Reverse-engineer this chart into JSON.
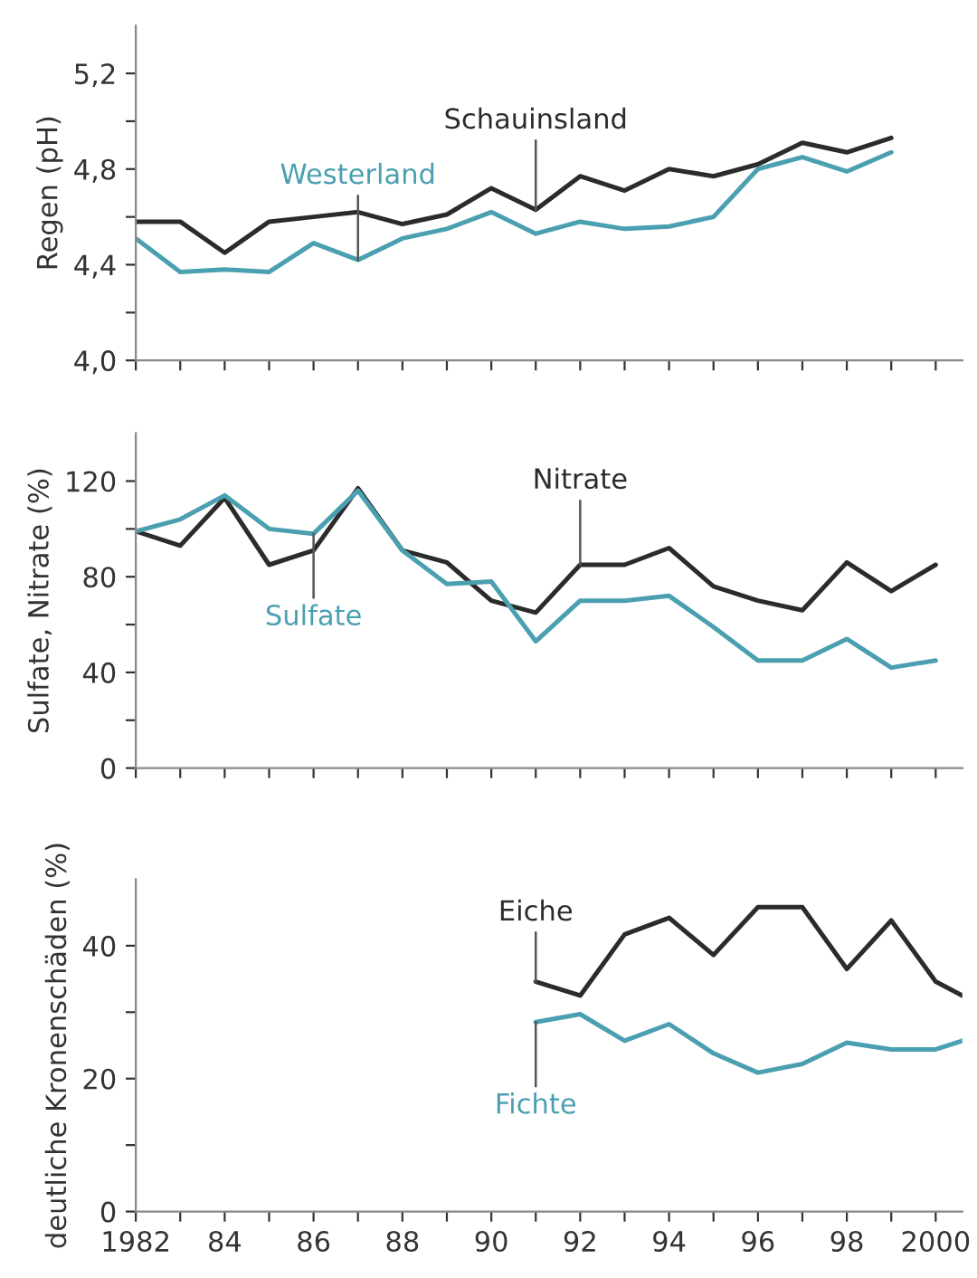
{
  "chart_data": [
    {
      "type": "line",
      "ylabel": "Regen (pH)",
      "x": [
        1982,
        1983,
        1984,
        1985,
        1986,
        1987,
        1988,
        1989,
        1990,
        1991,
        1992,
        1993,
        1994,
        1995,
        1996,
        1997,
        1998,
        1999
      ],
      "xlim": [
        1982,
        2000.6
      ],
      "xticks": [
        {
          "value": 1982,
          "label": null
        },
        {
          "value": 1983,
          "label": null
        },
        {
          "value": 1984,
          "label": null
        },
        {
          "value": 1985,
          "label": null
        },
        {
          "value": 1986,
          "label": null
        },
        {
          "value": 1987,
          "label": null
        },
        {
          "value": 1988,
          "label": null
        },
        {
          "value": 1989,
          "label": null
        },
        {
          "value": 1990,
          "label": null
        },
        {
          "value": 1991,
          "label": null
        },
        {
          "value": 1992,
          "label": null
        },
        {
          "value": 1993,
          "label": null
        },
        {
          "value": 1994,
          "label": null
        },
        {
          "value": 1995,
          "label": null
        },
        {
          "value": 1996,
          "label": null
        },
        {
          "value": 1997,
          "label": null
        },
        {
          "value": 1998,
          "label": null
        },
        {
          "value": 1999,
          "label": null
        },
        {
          "value": 2000,
          "label": null
        }
      ],
      "ylim": [
        4.0,
        5.4
      ],
      "yticks": [
        {
          "value": 4.0,
          "label": "4,0"
        },
        {
          "value": 4.2,
          "label": null
        },
        {
          "value": 4.4,
          "label": "4,4"
        },
        {
          "value": 4.6,
          "label": null
        },
        {
          "value": 4.8,
          "label": "4,8"
        },
        {
          "value": 5.0,
          "label": null
        },
        {
          "value": 5.2,
          "label": "5,2"
        }
      ],
      "tick_labels": "y",
      "grid": false,
      "legend": false,
      "series": [
        {
          "name": "Schauinsland",
          "color": "#2b2b2b",
          "values": [
            4.58,
            4.58,
            4.45,
            4.58,
            4.6,
            4.62,
            4.57,
            4.61,
            4.72,
            4.63,
            4.77,
            4.71,
            4.8,
            4.77,
            4.82,
            4.91,
            4.87,
            4.93
          ]
        },
        {
          "name": "Westerland",
          "color": "#4a9fb0",
          "values": [
            4.51,
            4.37,
            4.38,
            4.37,
            4.49,
            4.42,
            4.51,
            4.55,
            4.62,
            4.53,
            4.58,
            4.55,
            4.56,
            4.6,
            4.8,
            4.85,
            4.79,
            4.87
          ]
        }
      ]
    },
    {
      "type": "line",
      "ylabel": "Sulfate, Nitrate (%)",
      "x": [
        1982,
        1983,
        1984,
        1985,
        1986,
        1987,
        1988,
        1989,
        1990,
        1991,
        1992,
        1993,
        1994,
        1995,
        1996,
        1997,
        1998,
        1999,
        2000
      ],
      "xlim": [
        1982,
        2000.6
      ],
      "xticks": [
        {
          "value": 1982,
          "label": null
        },
        {
          "value": 1983,
          "label": null
        },
        {
          "value": 1984,
          "label": null
        },
        {
          "value": 1985,
          "label": null
        },
        {
          "value": 1986,
          "label": null
        },
        {
          "value": 1987,
          "label": null
        },
        {
          "value": 1988,
          "label": null
        },
        {
          "value": 1989,
          "label": null
        },
        {
          "value": 1990,
          "label": null
        },
        {
          "value": 1991,
          "label": null
        },
        {
          "value": 1992,
          "label": null
        },
        {
          "value": 1993,
          "label": null
        },
        {
          "value": 1994,
          "label": null
        },
        {
          "value": 1995,
          "label": null
        },
        {
          "value": 1996,
          "label": null
        },
        {
          "value": 1997,
          "label": null
        },
        {
          "value": 1998,
          "label": null
        },
        {
          "value": 1999,
          "label": null
        },
        {
          "value": 2000,
          "label": null
        }
      ],
      "ylim": [
        0,
        140
      ],
      "yticks": [
        0,
        {
          "value": 20,
          "label": null
        },
        40,
        {
          "value": 60,
          "label": null
        },
        80,
        {
          "value": 100,
          "label": null
        },
        120
      ],
      "tick_labels": "y",
      "grid": false,
      "legend": false,
      "series": [
        {
          "name": "Nitrate",
          "color": "#2b2b2b",
          "values": [
            99,
            93,
            113,
            85,
            91,
            117,
            91,
            86,
            70,
            65,
            85,
            85,
            92,
            76,
            70,
            66,
            86,
            74,
            85
          ]
        },
        {
          "name": "Sulfate",
          "color": "#4a9fb0",
          "values": [
            99,
            104,
            114,
            100,
            98,
            116,
            91,
            77,
            78,
            53,
            70,
            70,
            72,
            59,
            45,
            45,
            54,
            42,
            45
          ]
        }
      ]
    },
    {
      "type": "line",
      "ylabel": "deutliche Kronenschäden (%)",
      "xlim": [
        1982,
        2000.6
      ],
      "xticks": [
        {
          "value": 1982,
          "label": "1982"
        },
        {
          "value": 1983,
          "label": null
        },
        {
          "value": 1984,
          "label": "84"
        },
        {
          "value": 1985,
          "label": null
        },
        {
          "value": 1986,
          "label": "86"
        },
        {
          "value": 1987,
          "label": null
        },
        {
          "value": 1988,
          "label": "88"
        },
        {
          "value": 1989,
          "label": null
        },
        {
          "value": 1990,
          "label": "90"
        },
        {
          "value": 1991,
          "label": null
        },
        {
          "value": 1992,
          "label": "92"
        },
        {
          "value": 1993,
          "label": null
        },
        {
          "value": 1994,
          "label": "94"
        },
        {
          "value": 1995,
          "label": null
        },
        {
          "value": 1996,
          "label": "96"
        },
        {
          "value": 1997,
          "label": null
        },
        {
          "value": 1998,
          "label": "98"
        },
        {
          "value": 1999,
          "label": null
        },
        {
          "value": 2000,
          "label": "2000"
        }
      ],
      "ylim": [
        0,
        50
      ],
      "yticks": [
        0,
        {
          "value": 10,
          "label": null
        },
        20,
        {
          "value": 30,
          "label": null
        },
        40
      ],
      "grid": false,
      "legend": false,
      "series": [
        {
          "name": "Eiche",
          "color": "#2b2b2b",
          "x": [
            1991,
            1992,
            1993,
            1994,
            1995,
            1996,
            1997,
            1998,
            1999,
            2000,
            2000.6
          ],
          "values": [
            34.6,
            32.5,
            41.7,
            44.2,
            38.6,
            45.8,
            45.8,
            36.5,
            43.8,
            34.6,
            32.5
          ]
        },
        {
          "name": "Fichte",
          "color": "#4a9fb0",
          "x": [
            1991,
            1992,
            1993,
            1994,
            1995,
            1996,
            1997,
            1998,
            1999,
            2000,
            2000.6
          ],
          "values": [
            28.5,
            29.7,
            25.7,
            28.2,
            23.8,
            20.9,
            22.2,
            25.4,
            24.4,
            24.4,
            25.7
          ]
        }
      ]
    }
  ]
}
